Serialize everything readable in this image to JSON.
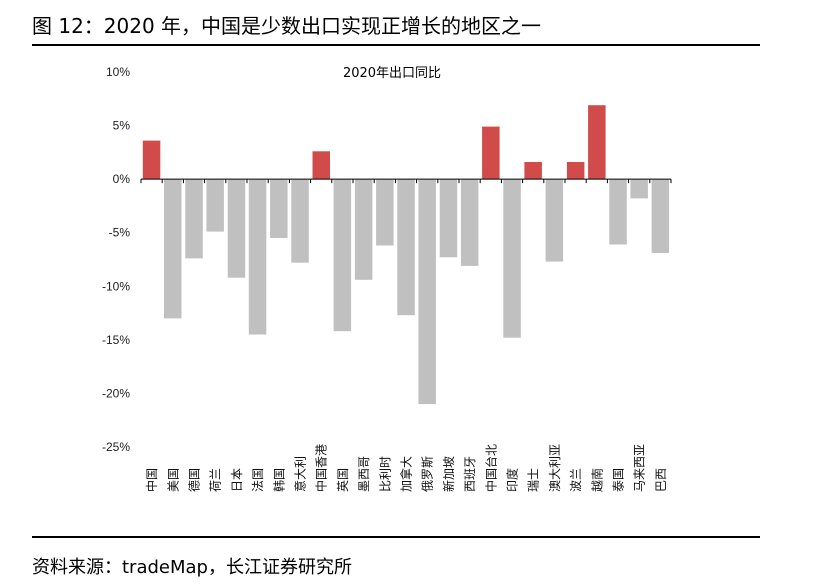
{
  "figure": {
    "title": "图 12：2020 年，中国是少数出口实现正增长的地区之一",
    "source": "资料来源：tradeMap，长江证券研究所"
  },
  "chart_data": {
    "type": "bar",
    "title": "2020年出口同比",
    "xlabel": "",
    "ylabel": "",
    "ylim": [
      -25,
      10
    ],
    "yticks": [
      10,
      5,
      0,
      -5,
      -10,
      -15,
      -20,
      -25
    ],
    "ytick_labels": [
      "10%",
      "5%",
      "0%",
      "-5%",
      "-10%",
      "-15%",
      "-20%",
      "-25%"
    ],
    "grid": false,
    "legend": "none",
    "colors": {
      "positive": "#d24b4b",
      "negative": "#c0c0c0"
    },
    "categories": [
      "中国",
      "美国",
      "德国",
      "荷兰",
      "日本",
      "法国",
      "韩国",
      "意大利",
      "中国香港",
      "英国",
      "墨西哥",
      "比利时",
      "加拿大",
      "俄罗斯",
      "新加坡",
      "西班牙",
      "中国台北",
      "印度",
      "瑞士",
      "澳大利亚",
      "波兰",
      "越南",
      "泰国",
      "马来西亚",
      "巴西"
    ],
    "values": [
      3.6,
      -13.0,
      -7.4,
      -4.9,
      -9.2,
      -14.5,
      -5.5,
      -7.8,
      2.6,
      -14.2,
      -9.4,
      -6.2,
      -12.7,
      -21.0,
      -7.3,
      -8.1,
      4.9,
      -14.8,
      1.6,
      -7.7,
      1.6,
      6.9,
      -6.1,
      -1.8,
      -6.9
    ]
  }
}
